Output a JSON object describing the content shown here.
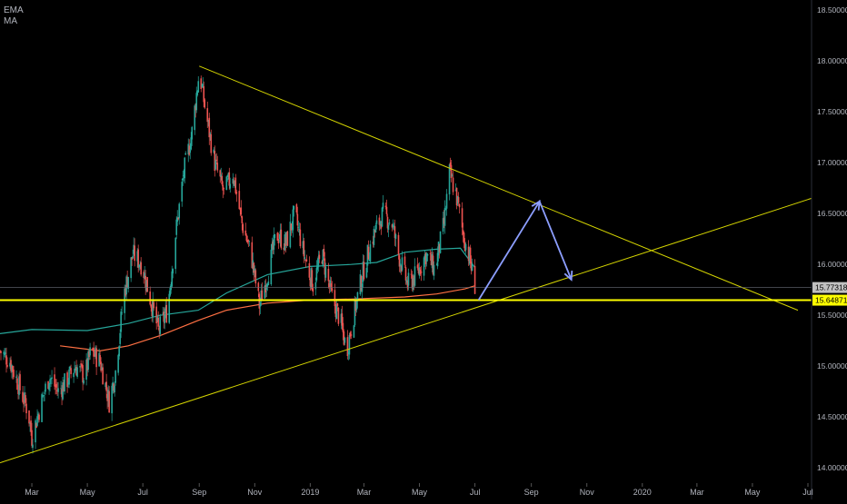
{
  "indicators": {
    "ema_label": "EMA",
    "ma_label": "MA"
  },
  "colors": {
    "background": "#000000",
    "up_candle": "#26a69a",
    "down_candle": "#ef5350",
    "ema_line": "#26a69a",
    "ma_line": "#ff7043",
    "trendline": "#d4d400",
    "support_line": "#ffff00",
    "arrow": "#8c9eff",
    "axis_text": "#b2b5be",
    "current_price_tag": "#c0c0c0",
    "support_price_tag": "#ffff00"
  },
  "chart_data": {
    "type": "candlestick",
    "x_start": "2018-01-25",
    "x_end": "2020-07-05",
    "ylim": [
      13.85,
      18.6
    ],
    "grid": false,
    "x_ticks": [
      {
        "date": "2018-03-01",
        "label": "Mar"
      },
      {
        "date": "2018-05-01",
        "label": "May"
      },
      {
        "date": "2018-07-01",
        "label": "Jul"
      },
      {
        "date": "2018-09-01",
        "label": "Sep"
      },
      {
        "date": "2018-11-01",
        "label": "Nov"
      },
      {
        "date": "2019-01-01",
        "label": "2019"
      },
      {
        "date": "2019-03-01",
        "label": "Mar"
      },
      {
        "date": "2019-05-01",
        "label": "May"
      },
      {
        "date": "2019-07-01",
        "label": "Jul"
      },
      {
        "date": "2019-09-01",
        "label": "Sep"
      },
      {
        "date": "2019-11-01",
        "label": "Nov"
      },
      {
        "date": "2020-01-01",
        "label": "2020"
      },
      {
        "date": "2020-03-01",
        "label": "Mar"
      },
      {
        "date": "2020-05-01",
        "label": "May"
      },
      {
        "date": "2020-07-01",
        "label": "Jul"
      }
    ],
    "y_ticks": [
      {
        "value": 14.0,
        "label": "14.00000"
      },
      {
        "value": 14.5,
        "label": "14.50000"
      },
      {
        "value": 15.0,
        "label": "15.00000"
      },
      {
        "value": 15.5,
        "label": "15.50000"
      },
      {
        "value": 16.0,
        "label": "16.00000"
      },
      {
        "value": 16.5,
        "label": "16.50000"
      },
      {
        "value": 17.0,
        "label": "17.00000"
      },
      {
        "value": 17.5,
        "label": "17.50000"
      },
      {
        "value": 18.0,
        "label": "18.00000"
      },
      {
        "value": 18.5,
        "label": "18.50000"
      }
    ],
    "price_tags": {
      "current": {
        "value": 15.77318,
        "label": "15.77318"
      },
      "support": {
        "value": 15.64871,
        "label": "15.64871"
      }
    },
    "close_path": [
      [
        "2018-01-25",
        15.15
      ],
      [
        "2018-02-05",
        15.05
      ],
      [
        "2018-02-15",
        14.8
      ],
      [
        "2018-02-25",
        14.55
      ],
      [
        "2018-03-01",
        14.3
      ],
      [
        "2018-03-10",
        14.6
      ],
      [
        "2018-03-20",
        14.9
      ],
      [
        "2018-03-30",
        14.75
      ],
      [
        "2018-04-08",
        14.85
      ],
      [
        "2018-04-18",
        15.0
      ],
      [
        "2018-04-28",
        14.9
      ],
      [
        "2018-05-05",
        15.15
      ],
      [
        "2018-05-15",
        15.05
      ],
      [
        "2018-05-25",
        14.65
      ],
      [
        "2018-06-01",
        14.95
      ],
      [
        "2018-06-10",
        15.7
      ],
      [
        "2018-06-20",
        16.1
      ],
      [
        "2018-06-30",
        16.0
      ],
      [
        "2018-07-08",
        15.7
      ],
      [
        "2018-07-18",
        15.35
      ],
      [
        "2018-07-28",
        15.55
      ],
      [
        "2018-08-06",
        16.3
      ],
      [
        "2018-08-15",
        16.9
      ],
      [
        "2018-08-24",
        17.3
      ],
      [
        "2018-09-01",
        17.9
      ],
      [
        "2018-09-08",
        17.5
      ],
      [
        "2018-09-18",
        17.0
      ],
      [
        "2018-09-28",
        16.7
      ],
      [
        "2018-10-08",
        16.9
      ],
      [
        "2018-10-18",
        16.4
      ],
      [
        "2018-10-28",
        16.1
      ],
      [
        "2018-11-06",
        15.6
      ],
      [
        "2018-11-15",
        15.9
      ],
      [
        "2018-11-25",
        16.3
      ],
      [
        "2018-12-05",
        16.2
      ],
      [
        "2018-12-15",
        16.5
      ],
      [
        "2018-12-25",
        16.1
      ],
      [
        "2019-01-04",
        15.8
      ],
      [
        "2019-01-14",
        16.1
      ],
      [
        "2019-01-24",
        15.7
      ],
      [
        "2019-02-03",
        15.45
      ],
      [
        "2019-02-10",
        15.15
      ],
      [
        "2019-02-20",
        15.6
      ],
      [
        "2019-03-02",
        16.0
      ],
      [
        "2019-03-12",
        16.3
      ],
      [
        "2019-03-22",
        16.5
      ],
      [
        "2019-04-01",
        16.4
      ],
      [
        "2019-04-08",
        16.1
      ],
      [
        "2019-04-18",
        15.8
      ],
      [
        "2019-04-28",
        15.9
      ],
      [
        "2019-05-08",
        16.1
      ],
      [
        "2019-05-18",
        15.95
      ],
      [
        "2019-05-28",
        16.4
      ],
      [
        "2019-06-03",
        16.9
      ],
      [
        "2019-06-10",
        16.7
      ],
      [
        "2019-06-18",
        16.3
      ],
      [
        "2019-06-24",
        16.1
      ],
      [
        "2019-07-01",
        15.8
      ]
    ],
    "ema_path": [
      [
        "2018-01-25",
        15.32
      ],
      [
        "2018-03-01",
        15.36
      ],
      [
        "2018-05-01",
        15.35
      ],
      [
        "2018-06-15",
        15.42
      ],
      [
        "2018-07-20",
        15.5
      ],
      [
        "2018-08-31",
        15.55
      ],
      [
        "2018-10-01",
        15.72
      ],
      [
        "2018-11-15",
        15.9
      ],
      [
        "2019-01-01",
        15.98
      ],
      [
        "2019-02-15",
        16.0
      ],
      [
        "2019-03-15",
        16.02
      ],
      [
        "2019-04-15",
        16.12
      ],
      [
        "2019-05-20",
        16.15
      ],
      [
        "2019-06-15",
        16.16
      ],
      [
        "2019-07-01",
        15.97
      ]
    ],
    "ma_path": [
      [
        "2018-04-01",
        15.2
      ],
      [
        "2018-05-15",
        15.15
      ],
      [
        "2018-06-15",
        15.2
      ],
      [
        "2018-07-20",
        15.3
      ],
      [
        "2018-08-31",
        15.45
      ],
      [
        "2018-10-01",
        15.55
      ],
      [
        "2018-11-15",
        15.62
      ],
      [
        "2019-01-01",
        15.65
      ],
      [
        "2019-02-15",
        15.66
      ],
      [
        "2019-04-15",
        15.68
      ],
      [
        "2019-05-20",
        15.71
      ],
      [
        "2019-06-20",
        15.76
      ],
      [
        "2019-07-01",
        15.79
      ]
    ],
    "annotations": {
      "descending_trendline": [
        [
          "2018-09-01",
          17.95
        ],
        [
          "2020-06-20",
          15.55
        ]
      ],
      "ascending_trendline": [
        [
          "2018-01-25",
          14.05
        ],
        [
          "2020-07-05",
          16.65
        ]
      ],
      "support_level": 15.64871,
      "projection_arrow": [
        [
          "2019-07-05",
          15.65
        ],
        [
          "2019-09-10",
          16.62
        ],
        [
          "2019-10-15",
          15.85
        ]
      ]
    }
  }
}
